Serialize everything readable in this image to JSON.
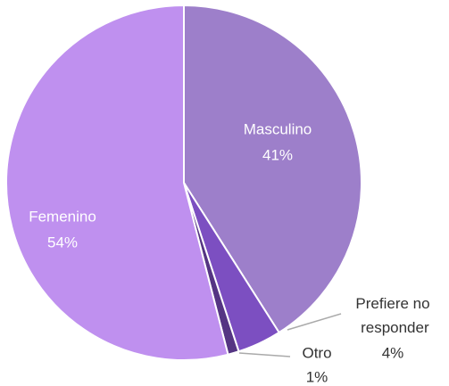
{
  "chart_data": {
    "type": "pie",
    "categories": [
      "Masculino",
      "Prefiere no responder",
      "Otro",
      "Femenino"
    ],
    "values": [
      41,
      4,
      1,
      54
    ],
    "value_labels": [
      "41%",
      "4%",
      "1%",
      "54%"
    ],
    "colors": [
      "#9d7fca",
      "#7c4fc1",
      "#553583",
      "#bf90ef"
    ]
  }
}
